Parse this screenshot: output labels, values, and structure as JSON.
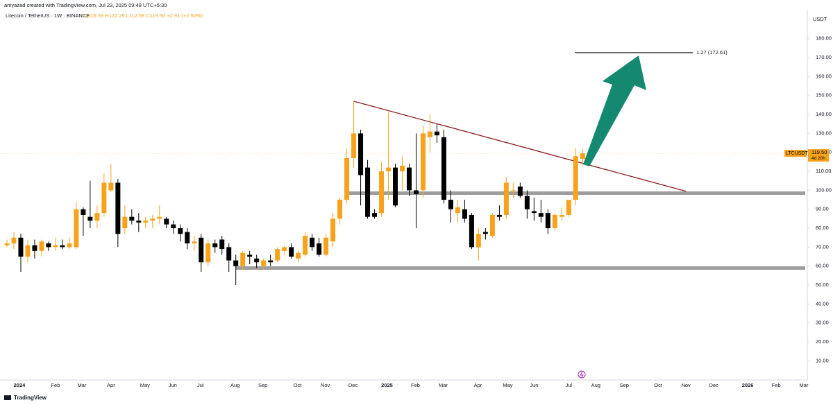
{
  "header": {
    "author": "amyazad created with TradingView.com, Jul 23, 2025 09:48 UTC+5:30",
    "symbol": "Litecoin / TetherUS · 1W · BINANCE",
    "ohlc": "O116.59 H122.29 L112.59 C119.50 +2.91 (+2.50%)"
  },
  "footer": {
    "brand": "TradingView"
  },
  "chart_data": {
    "type": "candlestick",
    "axis_unit": "USDT",
    "up_color": "#f7a21b",
    "down_color": "#000000",
    "candles": {
      "open": [
        71,
        72,
        75,
        65,
        71,
        68,
        72,
        70,
        71,
        70,
        70,
        90,
        86,
        84,
        88,
        100,
        104,
        80,
        86,
        84,
        83,
        84,
        85,
        85,
        82,
        80,
        78,
        72,
        75,
        62,
        72,
        74,
        70,
        63,
        60,
        66,
        64,
        60,
        63,
        63,
        68,
        70,
        64,
        66,
        75,
        72,
        66,
        73,
        85,
        95,
        117,
        130,
        112,
        88,
        88,
        110,
        112,
        110,
        112,
        100,
        100,
        128,
        131,
        128,
        95,
        88,
        90,
        87,
        70,
        78,
        76,
        87,
        87,
        100,
        102,
        97,
        89,
        88,
        88,
        80,
        86,
        87,
        95,
        116.59
      ],
      "high": [
        74,
        78,
        77,
        74,
        74,
        74,
        73,
        75,
        74,
        75,
        94,
        91,
        105,
        92,
        109,
        114,
        106,
        92,
        90,
        88,
        86,
        87,
        92,
        86,
        84,
        82,
        80,
        76,
        77,
        74,
        74,
        76,
        72,
        66,
        68,
        68,
        66,
        64,
        66,
        70,
        71,
        72,
        68,
        78,
        77,
        75,
        77,
        88,
        96,
        122,
        147,
        132,
        116,
        90,
        115,
        141,
        114,
        118,
        114,
        130,
        134,
        140,
        135,
        132,
        100,
        95,
        95,
        88,
        80,
        80,
        88,
        92,
        107,
        104,
        104,
        100,
        96,
        95,
        90,
        88,
        91,
        95,
        122,
        122.29
      ],
      "low": [
        70,
        69,
        57,
        62,
        64,
        65,
        68,
        68,
        69,
        69,
        69,
        76,
        80,
        80,
        86,
        99,
        70,
        77,
        82,
        78,
        80,
        80,
        82,
        80,
        77,
        73,
        69,
        68,
        57,
        60,
        67,
        66,
        57,
        50,
        58,
        61,
        59,
        58,
        60,
        62,
        66,
        64,
        62,
        65,
        68,
        65,
        65,
        70,
        82,
        93,
        112,
        92,
        85,
        85,
        86,
        95,
        91,
        100,
        97,
        80,
        96,
        120,
        125,
        93,
        83,
        83,
        83,
        69,
        63,
        74,
        75,
        84,
        85,
        96,
        96,
        85,
        84,
        83,
        77,
        79,
        84,
        86,
        92,
        112.59
      ],
      "close": [
        72,
        75,
        65,
        71,
        68,
        73,
        70,
        71,
        70,
        72,
        90,
        87,
        84,
        88,
        104,
        104,
        77,
        86,
        84,
        83,
        84,
        85,
        86,
        82,
        80,
        77,
        72,
        73,
        62,
        72,
        70,
        69,
        63,
        60,
        67,
        65,
        62,
        63,
        62,
        69,
        70,
        65,
        67,
        76,
        70,
        66,
        75,
        85,
        95,
        117,
        130,
        108,
        86,
        86,
        110,
        112,
        92,
        113,
        100,
        98,
        130,
        131,
        129,
        95,
        90,
        91,
        85,
        70,
        77,
        77,
        87,
        86,
        104,
        100,
        97,
        90,
        88,
        86,
        80,
        87,
        87,
        95,
        118,
        119.5
      ]
    },
    "xlim": [
      -1,
      115.4
    ],
    "xticks": [
      {
        "value": 1.8,
        "label": "2024"
      },
      {
        "value": 7.0,
        "label": "Feb"
      },
      {
        "value": 10.8,
        "label": "Mar"
      },
      {
        "value": 15.0,
        "label": "Apr"
      },
      {
        "value": 19.9,
        "label": "May"
      },
      {
        "value": 23.9,
        "label": "Jun"
      },
      {
        "value": 27.9,
        "label": "Jul"
      },
      {
        "value": 32.9,
        "label": "Aug"
      },
      {
        "value": 36.9,
        "label": "Sep"
      },
      {
        "value": 41.9,
        "label": "Oct"
      },
      {
        "value": 45.9,
        "label": "Nov"
      },
      {
        "value": 49.9,
        "label": "Dec"
      },
      {
        "value": 54.8,
        "label": "2025"
      },
      {
        "value": 58.9,
        "label": "Feb"
      },
      {
        "value": 62.9,
        "label": "Mar"
      },
      {
        "value": 67.9,
        "label": "Apr"
      },
      {
        "value": 72.2,
        "label": "May"
      },
      {
        "value": 76.0,
        "label": "Jun"
      },
      {
        "value": 81.0,
        "label": "Jul"
      },
      {
        "value": 84.9,
        "label": "Aug"
      },
      {
        "value": 89.0,
        "label": "Sep"
      },
      {
        "value": 93.9,
        "label": "Oct"
      },
      {
        "value": 97.9,
        "label": "Nov"
      },
      {
        "value": 101.9,
        "label": "Dec"
      },
      {
        "value": 106.8,
        "label": "2026"
      },
      {
        "value": 110.9,
        "label": "Feb"
      },
      {
        "value": 114.9,
        "label": "Mar"
      }
    ],
    "ylim": [
      -0.1,
      200.4
    ],
    "yticks": [
      {
        "value": 10,
        "label": "10.00"
      },
      {
        "value": 20,
        "label": "20.00"
      },
      {
        "value": 30,
        "label": "30.00"
      },
      {
        "value": 40,
        "label": "40.00"
      },
      {
        "value": 50,
        "label": "50.00"
      },
      {
        "value": 60,
        "label": "60.00"
      },
      {
        "value": 70,
        "label": "70.00"
      },
      {
        "value": 80,
        "label": "80.00"
      },
      {
        "value": 90,
        "label": "90.00"
      },
      {
        "value": 100,
        "label": "100.00"
      },
      {
        "value": 110,
        "label": "110.00"
      },
      {
        "value": 120,
        "label": "120.00"
      },
      {
        "value": 130,
        "label": "130.00"
      },
      {
        "value": 140,
        "label": "140.00"
      },
      {
        "value": 150,
        "label": "150.00"
      },
      {
        "value": 160,
        "label": "160.00"
      },
      {
        "value": 170,
        "label": "170.00"
      },
      {
        "value": 180,
        "label": "180.00"
      }
    ],
    "grid": false,
    "price_tag": {
      "symbol": "LTCUSDT",
      "value": 119.5,
      "label": "119.50",
      "countdown": "4d 20h"
    },
    "zones": [
      {
        "x0": 49,
        "price": 98.5
      },
      {
        "x0": 33,
        "price": 59
      }
    ],
    "trendline": {
      "x": [
        50,
        97.9
      ],
      "y": [
        147,
        99.5
      ],
      "color": "#8b1a1a"
    },
    "fib_level": {
      "x": [
        81.9,
        98.9
      ],
      "value": 172.61,
      "label": "1.27 (172.61)"
    }
  }
}
